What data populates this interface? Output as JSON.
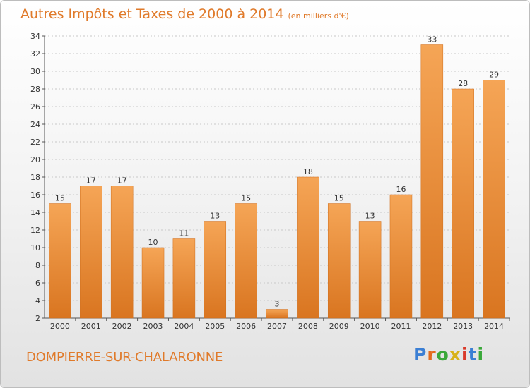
{
  "title": "Autres Impôts et Taxes de 2000 à 2014",
  "unit": "(en milliers d'€)",
  "commune": "DOMPIERRE-SUR-CHALARONNE",
  "logo": {
    "text": "Proxiti",
    "letter_colors": [
      "#3b7fd4",
      "#e26b1e",
      "#3aa83a",
      "#d8b21a",
      "#d93a2a",
      "#3b7fd4",
      "#3aa83a"
    ]
  },
  "colors": {
    "bar_top": "#f5a556",
    "bar_bottom": "#d97520",
    "accent": "#e07a2a",
    "grid": "#c8c8c8"
  },
  "chart_data": {
    "type": "bar",
    "categories": [
      "2000",
      "2001",
      "2002",
      "2003",
      "2004",
      "2005",
      "2006",
      "2007",
      "2008",
      "2009",
      "2010",
      "2011",
      "2012",
      "2013",
      "2014"
    ],
    "values": [
      15,
      17,
      17,
      10,
      11,
      13,
      15,
      3,
      18,
      15,
      13,
      16,
      33,
      28,
      29
    ],
    "ylim": [
      2,
      34
    ],
    "yticks": [
      2,
      4,
      6,
      8,
      10,
      12,
      14,
      16,
      18,
      20,
      22,
      24,
      26,
      28,
      30,
      32,
      34
    ],
    "grid": true,
    "title": "Autres Impôts et Taxes de 2000 à 2014",
    "xlabel": "",
    "ylabel": ""
  }
}
